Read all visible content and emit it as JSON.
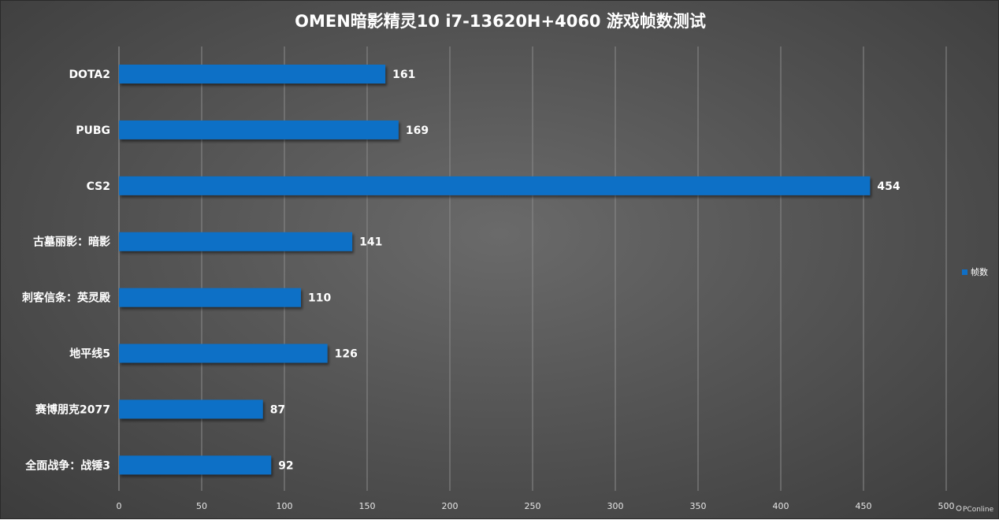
{
  "chart_data": {
    "type": "bar",
    "orientation": "horizontal",
    "title": "OMEN暗影精灵10 i7-13620H+4060 游戏帧数测试",
    "categories": [
      "DOTA2",
      "PUBG",
      "CS2",
      "古墓丽影：暗影",
      "刺客信条：英灵殿",
      "地平线5",
      "赛博朋克2077",
      "全面战争：战锤3"
    ],
    "series": [
      {
        "name": "帧数",
        "values": [
          161,
          169,
          454,
          141,
          110,
          126,
          87,
          92
        ],
        "color": "#0f6fc6"
      }
    ],
    "x_ticks": [
      0,
      50,
      100,
      150,
      200,
      250,
      300,
      350,
      400,
      450,
      500
    ],
    "xlim": [
      0,
      500
    ],
    "grid": true,
    "legend_position": "right",
    "watermark": "PConline"
  }
}
